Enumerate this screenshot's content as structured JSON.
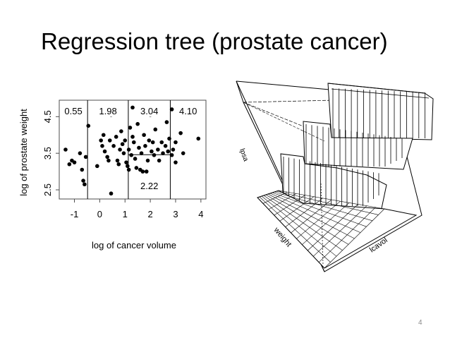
{
  "slide": {
    "title": "Regression tree (prostate cancer)",
    "page_number": "4"
  },
  "chart_data": [
    {
      "type": "scatter",
      "xlabel": "log of cancer volume",
      "ylabel": "log of prostate weight",
      "xlim": [
        -1.6,
        4.2
      ],
      "ylim": [
        2.25,
        4.95
      ],
      "xticks": [
        "-1",
        "0",
        "1",
        "2",
        "3",
        "4"
      ],
      "xtick_values": [
        -1,
        0,
        1,
        2,
        3,
        4
      ],
      "yticks": [
        "2.5",
        "3.5",
        "4.5"
      ],
      "ytick_values": [
        2.5,
        3.5,
        4.5
      ],
      "regions": [
        {
          "label": "0.55",
          "x_range": [
            -1.6,
            -0.48
          ],
          "y_range": [
            2.25,
            4.95
          ]
        },
        {
          "label": "1.98",
          "x_range": [
            -0.48,
            1.13
          ],
          "y_range": [
            2.25,
            4.95
          ]
        },
        {
          "label": "3.04",
          "x_range": [
            1.13,
            2.79
          ],
          "y_range": [
            3.46,
            4.95
          ]
        },
        {
          "label": "2.22",
          "x_range": [
            1.13,
            2.79
          ],
          "y_range": [
            2.25,
            3.46
          ]
        },
        {
          "label": "4.10",
          "x_range": [
            2.79,
            4.2
          ],
          "y_range": [
            2.25,
            4.95
          ]
        }
      ],
      "splits": [
        {
          "axis": "x",
          "value": -0.48
        },
        {
          "axis": "x",
          "value": 1.13
        },
        {
          "axis": "x",
          "value": 2.79
        },
        {
          "axis": "y",
          "value": 3.46,
          "x_from": 1.13,
          "x_to": 2.79
        }
      ],
      "points": [
        [
          -1.35,
          3.6
        ],
        [
          -1.2,
          3.2
        ],
        [
          -1.1,
          3.3
        ],
        [
          -1.0,
          3.25
        ],
        [
          -0.78,
          3.5
        ],
        [
          -0.7,
          3.05
        ],
        [
          -0.65,
          2.75
        ],
        [
          -0.6,
          2.65
        ],
        [
          -0.55,
          3.4
        ],
        [
          -0.45,
          4.25
        ],
        [
          -0.1,
          3.15
        ],
        [
          0.05,
          3.85
        ],
        [
          0.1,
          3.7
        ],
        [
          0.15,
          4.0
        ],
        [
          0.2,
          3.55
        ],
        [
          0.3,
          3.4
        ],
        [
          0.35,
          3.3
        ],
        [
          0.4,
          3.85
        ],
        [
          0.45,
          4.55
        ],
        [
          0.45,
          2.4
        ],
        [
          0.55,
          3.7
        ],
        [
          0.65,
          3.95
        ],
        [
          0.7,
          3.3
        ],
        [
          0.75,
          3.2
        ],
        [
          0.8,
          3.6
        ],
        [
          0.85,
          4.1
        ],
        [
          0.9,
          3.75
        ],
        [
          0.95,
          3.5
        ],
        [
          1.0,
          3.85
        ],
        [
          1.05,
          3.25
        ],
        [
          1.1,
          3.15
        ],
        [
          1.15,
          3.05
        ],
        [
          1.15,
          3.6
        ],
        [
          1.2,
          4.2
        ],
        [
          1.25,
          3.45
        ],
        [
          1.3,
          3.95
        ],
        [
          1.3,
          4.75
        ],
        [
          1.35,
          3.8
        ],
        [
          1.4,
          3.35
        ],
        [
          1.45,
          3.1
        ],
        [
          1.5,
          4.3
        ],
        [
          1.55,
          3.65
        ],
        [
          1.6,
          3.05
        ],
        [
          1.65,
          3.5
        ],
        [
          1.7,
          3.0
        ],
        [
          1.75,
          4.0
        ],
        [
          1.8,
          3.7
        ],
        [
          1.85,
          3.0
        ],
        [
          1.9,
          3.3
        ],
        [
          1.95,
          3.85
        ],
        [
          2.0,
          4.55
        ],
        [
          2.05,
          3.55
        ],
        [
          2.1,
          3.8
        ],
        [
          2.15,
          3.45
        ],
        [
          2.2,
          4.15
        ],
        [
          2.3,
          3.6
        ],
        [
          2.35,
          3.3
        ],
        [
          2.45,
          3.8
        ],
        [
          2.5,
          3.5
        ],
        [
          2.6,
          3.7
        ],
        [
          2.65,
          4.35
        ],
        [
          2.7,
          3.55
        ],
        [
          2.75,
          3.9
        ],
        [
          2.85,
          3.45
        ],
        [
          2.85,
          4.7
        ],
        [
          2.9,
          3.6
        ],
        [
          3.0,
          3.25
        ],
        [
          3.0,
          3.8
        ],
        [
          3.2,
          4.05
        ],
        [
          3.3,
          3.5
        ],
        [
          3.9,
          3.9
        ]
      ]
    },
    {
      "type": "surface",
      "axis_labels": {
        "z": "lpsa",
        "y": "weight",
        "x": "lcavol"
      },
      "levels": [
        0.55,
        1.98,
        2.22,
        3.04,
        4.1
      ]
    }
  ],
  "colors": {
    "text": "#000000",
    "box": "#4d4d4d",
    "points": "#000000",
    "page_number": "#8a8a8a"
  }
}
